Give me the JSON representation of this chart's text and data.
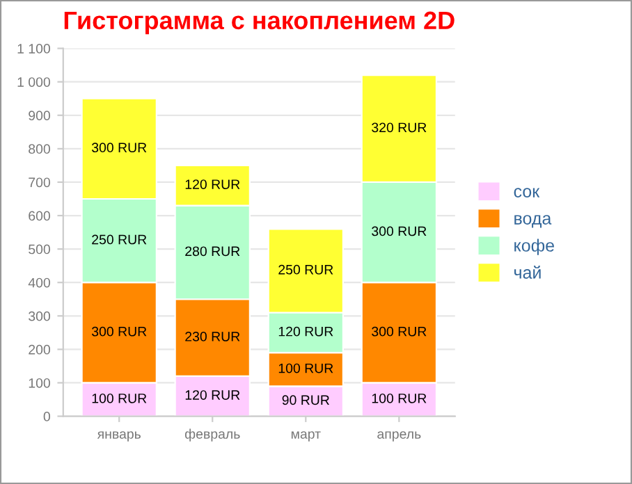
{
  "chart_data": {
    "type": "bar",
    "title": "Гистограмма с накоплением 2D",
    "stacked": true,
    "categories": [
      "январь",
      "февраль",
      "март",
      "апрель"
    ],
    "series": [
      {
        "name": "сок",
        "color": "#ffccff",
        "values": [
          100,
          120,
          90,
          100
        ],
        "value_labels": [
          "100 RUR",
          "120 RUR",
          "90 RUR",
          "100 RUR"
        ]
      },
      {
        "name": "вода",
        "color": "#ff8800",
        "values": [
          300,
          230,
          100,
          300
        ],
        "value_labels": [
          "300 RUR",
          "230 RUR",
          "100 RUR",
          "300 RUR"
        ]
      },
      {
        "name": "кофе",
        "color": "#b3ffcc",
        "values": [
          250,
          280,
          120,
          300
        ],
        "value_labels": [
          "250 RUR",
          "280 RUR",
          "120 RUR",
          "300 RUR"
        ]
      },
      {
        "name": "чай",
        "color": "#ffff33",
        "values": [
          300,
          120,
          250,
          320
        ],
        "value_labels": [
          "300 RUR",
          "120 RUR",
          "250 RUR",
          "320 RUR"
        ]
      }
    ],
    "ylim": [
      0,
      1100
    ],
    "yticks": [
      0,
      100,
      200,
      300,
      400,
      500,
      600,
      700,
      800,
      900,
      {
        "value": 1000,
        "label": "1 000"
      },
      {
        "value": 1100,
        "label": "1 100"
      }
    ],
    "grid": "y",
    "legend": "right"
  }
}
